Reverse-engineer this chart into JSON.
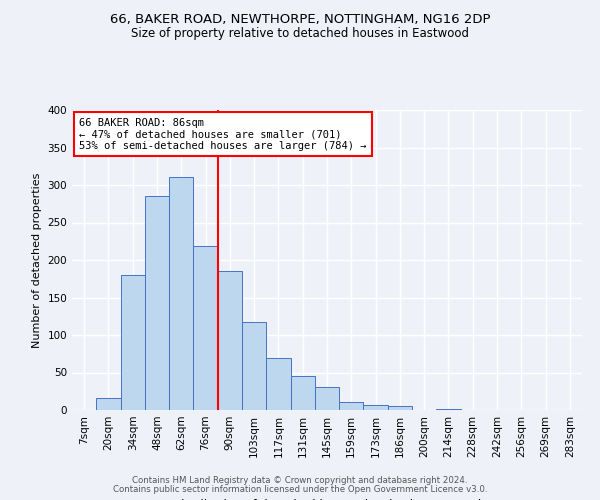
{
  "title": "66, BAKER ROAD, NEWTHORPE, NOTTINGHAM, NG16 2DP",
  "subtitle": "Size of property relative to detached houses in Eastwood",
  "xlabel": "Distribution of detached houses by size in Eastwood",
  "ylabel": "Number of detached properties",
  "bin_labels": [
    "7sqm",
    "20sqm",
    "34sqm",
    "48sqm",
    "62sqm",
    "76sqm",
    "90sqm",
    "103sqm",
    "117sqm",
    "131sqm",
    "145sqm",
    "159sqm",
    "173sqm",
    "186sqm",
    "200sqm",
    "214sqm",
    "228sqm",
    "242sqm",
    "256sqm",
    "269sqm",
    "283sqm"
  ],
  "bar_heights": [
    0,
    16,
    180,
    285,
    311,
    219,
    185,
    117,
    70,
    46,
    31,
    11,
    7,
    6,
    0,
    2,
    0,
    0,
    0,
    0,
    0
  ],
  "bar_color": "#bdd7ee",
  "bar_edge_color": "#4472c4",
  "vline_x_index": 6,
  "vline_color": "red",
  "annotation_text": "66 BAKER ROAD: 86sqm\n← 47% of detached houses are smaller (701)\n53% of semi-detached houses are larger (784) →",
  "annotation_box_color": "white",
  "annotation_box_edge": "red",
  "ylim": [
    0,
    400
  ],
  "yticks": [
    0,
    50,
    100,
    150,
    200,
    250,
    300,
    350,
    400
  ],
  "footer1": "Contains HM Land Registry data © Crown copyright and database right 2024.",
  "footer2": "Contains public sector information licensed under the Open Government Licence v3.0.",
  "bg_color": "#eef2f8",
  "plot_bg_color": "#eef2f8",
  "grid_color": "white",
  "title_fontsize": 9.5,
  "subtitle_fontsize": 8.5
}
